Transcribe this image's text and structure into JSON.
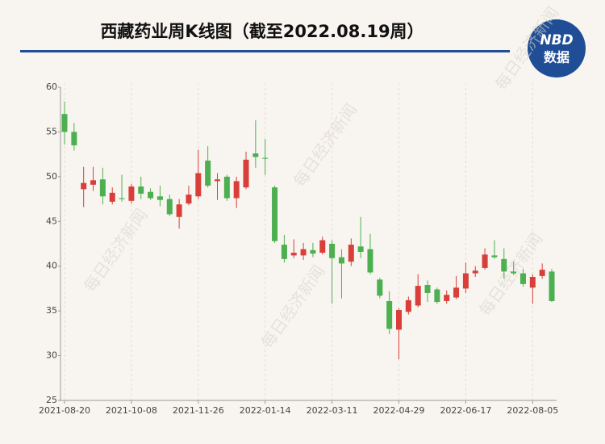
{
  "chart_data": {
    "type": "candlestick",
    "title": "西藏药业周K线图（截至2022.08.19周）",
    "logo_top": "NBD",
    "logo_bottom": "数据",
    "watermark": "每日经济新闻",
    "categories": [
      "2021-08-20",
      null,
      null,
      null,
      null,
      null,
      null,
      "2021-10-08",
      null,
      null,
      null,
      null,
      null,
      null,
      "2021-11-26",
      null,
      null,
      null,
      null,
      null,
      null,
      "2022-01-14",
      null,
      null,
      null,
      null,
      null,
      null,
      "2022-03-11",
      null,
      null,
      null,
      null,
      null,
      null,
      "2022-04-29",
      null,
      null,
      null,
      null,
      null,
      null,
      "2022-06-17",
      null,
      null,
      null,
      null,
      null,
      null,
      "2022-08-05",
      null,
      null
    ],
    "open": [
      57.0,
      55.0,
      48.6,
      49.1,
      49.7,
      47.2,
      47.6,
      47.3,
      48.9,
      48.3,
      47.8,
      47.5,
      45.5,
      47.0,
      47.8,
      51.8,
      49.5,
      50.0,
      47.6,
      48.8,
      52.6,
      52.1,
      48.8,
      42.4,
      41.2,
      41.2,
      41.8,
      41.5,
      42.5,
      41.0,
      40.5,
      42.2,
      41.9,
      38.5,
      36.1,
      32.9,
      34.9,
      35.6,
      37.9,
      37.4,
      36.1,
      36.5,
      37.5,
      39.2,
      39.8,
      41.2,
      40.8,
      39.4,
      39.2,
      37.6,
      38.9,
      39.4
    ],
    "high": [
      58.4,
      56.0,
      51.1,
      51.1,
      51.0,
      48.8,
      50.2,
      49.2,
      50.0,
      48.7,
      49.0,
      48.0,
      47.5,
      49.0,
      53.0,
      53.4,
      50.4,
      50.2,
      50.0,
      52.8,
      56.3,
      54.2,
      49.0,
      43.5,
      43.0,
      42.6,
      42.6,
      43.3,
      42.9,
      41.9,
      43.1,
      45.5,
      43.6,
      38.7,
      37.2,
      35.3,
      36.6,
      39.1,
      38.4,
      37.6,
      37.3,
      38.9,
      40.4,
      40.0,
      42.0,
      42.9,
      42.0,
      40.5,
      39.7,
      39.1,
      40.3,
      39.7
    ],
    "low": [
      53.6,
      52.9,
      46.6,
      48.4,
      46.9,
      46.9,
      47.2,
      47.0,
      47.5,
      47.4,
      46.7,
      45.6,
      44.2,
      46.8,
      47.5,
      48.8,
      47.4,
      47.3,
      46.5,
      48.6,
      51.0,
      50.2,
      42.6,
      40.4,
      40.9,
      40.7,
      41.0,
      41.3,
      35.8,
      36.4,
      40.0,
      40.9,
      39.1,
      36.4,
      32.4,
      29.6,
      34.6,
      35.4,
      36.0,
      35.8,
      35.8,
      36.3,
      37.0,
      38.8,
      39.6,
      40.8,
      38.6,
      39.0,
      37.7,
      35.8,
      38.6,
      36.0
    ],
    "close": [
      55.0,
      53.5,
      49.3,
      49.6,
      47.8,
      48.2,
      47.5,
      48.9,
      48.1,
      47.6,
      47.4,
      45.8,
      46.9,
      48.0,
      50.4,
      49.0,
      49.7,
      47.6,
      49.5,
      51.9,
      52.2,
      52.0,
      42.8,
      40.8,
      41.5,
      41.9,
      41.4,
      42.9,
      40.9,
      40.3,
      42.4,
      41.6,
      39.3,
      36.7,
      33.0,
      35.1,
      36.2,
      37.8,
      37.0,
      36.0,
      36.8,
      37.6,
      39.2,
      39.5,
      41.3,
      41.0,
      39.4,
      39.2,
      38.0,
      38.8,
      39.6,
      36.1
    ],
    "up_color": "#d93f3a",
    "down_color": "#4caf50",
    "ylim": [
      25,
      60
    ],
    "yticks": [
      25,
      30,
      35,
      40,
      45,
      50,
      55,
      60
    ],
    "grid": true
  }
}
